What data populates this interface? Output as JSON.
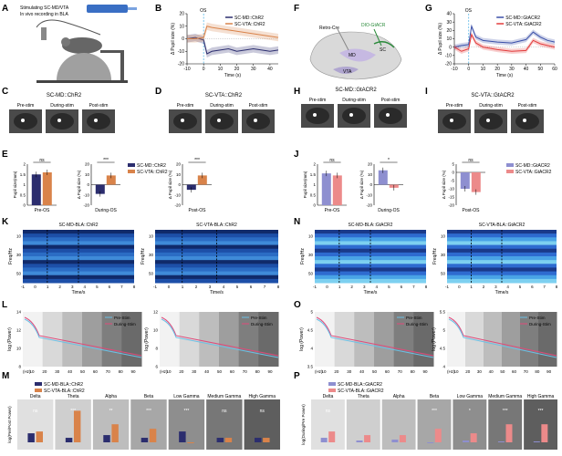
{
  "panels": {
    "A": "A",
    "B": "B",
    "C": "C",
    "D": "D",
    "E": "E",
    "F": "F",
    "G": "G",
    "H": "H",
    "I": "I",
    "J": "J",
    "K": "K",
    "L": "L",
    "M": "M",
    "N": "N",
    "O": "O",
    "P": "P"
  },
  "colors": {
    "navy": "#2b2d6e",
    "orange": "#d9834a",
    "lavender": "#8e8fd0",
    "salmon": "#ec8a8a",
    "red": "#e23b3b",
    "blue": "#3a4fa8",
    "cyan": "#6bc0e6",
    "pink": "#e04a7a"
  },
  "schematicA": {
    "line1": "Stimulating SC-MD/VTA",
    "line2": "In vivo recording in BLA"
  },
  "schematicF": {
    "retro": "Retro-Cre",
    "dio": "DIO-GtACR",
    "sc": "SC",
    "md": "MD",
    "vta": "VTA"
  },
  "titles": {
    "C": "SC-MD::ChR2",
    "D": "SC-VTA::ChR2",
    "H": "SC-MD::GtACR2",
    "I": "SC-VTA::GtACR2",
    "K1": "SC-MD-BLA::ChR2",
    "K2": "SC-VTA-BLA::ChR2",
    "N1": "SC-MD-BLA::GtACR2",
    "N2": "SC-VTA-BLA::GtACR2"
  },
  "eyeLabels": [
    "Pre-stim",
    "During-stim",
    "Post-stim"
  ],
  "eyeLabelsLower": [
    "Pre-stim",
    "During-stim",
    "Post-stim"
  ],
  "legends": {
    "chr": [
      "SC-MD::ChR2",
      "SC-VTA::ChR2"
    ],
    "gt": [
      "SC-MD::GtACR2",
      "SC-VTA::GtACR2"
    ],
    "prepost": [
      "Pre-Stim",
      "During-Stim"
    ],
    "bandChr": [
      "SC-MD-BLA::ChR2",
      "SC-VTA-BLA::ChR2"
    ],
    "bandGt": [
      "SC-MD-BLA::GtACR2",
      "SC-VTA-BLA::GtACR2"
    ]
  },
  "axes": {
    "pupilSizeMm": "Pupil size(mm)",
    "deltaPupil": "Δ Pupil size (%)",
    "time": "Time (s)",
    "timeS": "Time/s",
    "freq": "Freq/Hz",
    "logPower": "log (Power)",
    "logRatio": "log(Pre/Post Power)",
    "logRatioP": "log(During/Pre Power)",
    "hz": "(Hz)",
    "os": "OS",
    "preOS": "Pre-OS",
    "duringOS": "During-OS",
    "postOS": "Post-OS"
  },
  "bands": [
    "Delta",
    "Theta",
    "Alpha",
    "Beta",
    "Low Gamma",
    "Medium Gamma",
    "High Gamma"
  ],
  "sigM": [
    "ns",
    "***",
    "**",
    "***",
    "***",
    "ns",
    "ns"
  ],
  "sigP": [
    "ns",
    "",
    "",
    "***",
    "*",
    "***",
    "***"
  ],
  "sigE": [
    "ns",
    "***",
    "***"
  ],
  "sigJ": [
    "ns",
    "*",
    "ns"
  ],
  "chart_data": [
    {
      "panel": "B",
      "type": "line",
      "xlabel": "Time (s)",
      "ylabel": "Δ Pupil size (%)",
      "xlim": [
        -10,
        45
      ],
      "ylim": [
        -20,
        20
      ],
      "xticks": [
        -10,
        0,
        10,
        20,
        30,
        40
      ],
      "yticks": [
        -20,
        -10,
        0,
        10,
        20
      ],
      "series": [
        {
          "name": "SC-MD::ChR2",
          "x": [
            -10,
            -5,
            0,
            2,
            5,
            10,
            15,
            20,
            25,
            30,
            35,
            40,
            45
          ],
          "y": [
            0,
            1,
            -1,
            -12,
            -10,
            -9,
            -8,
            -10,
            -9,
            -8,
            -9,
            -10,
            -9
          ]
        },
        {
          "name": "SC-VTA::ChR2",
          "x": [
            -10,
            -5,
            0,
            2,
            5,
            10,
            15,
            20,
            25,
            30,
            35,
            40,
            45
          ],
          "y": [
            0,
            0,
            1,
            10,
            9,
            8,
            7,
            6,
            5,
            4,
            3,
            2,
            1
          ]
        }
      ]
    },
    {
      "panel": "E1",
      "type": "bar",
      "ylabel": "Pupil size(mm)",
      "categories": [
        "Pre-OS"
      ],
      "ylim": [
        0,
        2
      ],
      "yticks": [
        0,
        0.5,
        1,
        1.5,
        2
      ],
      "series": [
        {
          "name": "SC-MD::ChR2",
          "values": [
            1.5
          ]
        },
        {
          "name": "SC-VTA::ChR2",
          "values": [
            1.6
          ]
        }
      ]
    },
    {
      "panel": "E2",
      "type": "bar",
      "ylabel": "Δ Pupil size (%)",
      "categories": [
        "During-OS"
      ],
      "ylim": [
        -20,
        20
      ],
      "yticks": [
        -20,
        -10,
        0,
        10,
        20
      ],
      "series": [
        {
          "name": "SC-MD::ChR2",
          "values": [
            -9
          ]
        },
        {
          "name": "SC-VTA::ChR2",
          "values": [
            9
          ]
        }
      ]
    },
    {
      "panel": "E3",
      "type": "bar",
      "ylabel": "Δ Pupil size (%)",
      "categories": [
        "Post-OS"
      ],
      "ylim": [
        -20,
        20
      ],
      "yticks": [
        -20,
        -10,
        0,
        10,
        20
      ],
      "series": [
        {
          "name": "SC-MD::ChR2",
          "values": [
            -5
          ]
        },
        {
          "name": "SC-VTA::ChR2",
          "values": [
            9
          ]
        }
      ]
    },
    {
      "panel": "G",
      "type": "line",
      "xlabel": "Time (s)",
      "ylabel": "Δ Pupil size (%)",
      "xlim": [
        -10,
        60
      ],
      "ylim": [
        -20,
        40
      ],
      "xticks": [
        -10,
        0,
        10,
        20,
        30,
        40,
        50,
        60
      ],
      "yticks": [
        -20,
        -10,
        0,
        10,
        20,
        30,
        40
      ],
      "series": [
        {
          "name": "SC-MD::GtACR2",
          "x": [
            -10,
            -5,
            0,
            2,
            5,
            10,
            20,
            30,
            40,
            45,
            50,
            55,
            60
          ],
          "y": [
            0,
            2,
            3,
            25,
            12,
            8,
            6,
            5,
            9,
            18,
            12,
            8,
            6
          ]
        },
        {
          "name": "SC-VTA::GtACR2",
          "x": [
            -10,
            -5,
            0,
            2,
            5,
            10,
            20,
            30,
            40,
            45,
            50,
            55,
            60
          ],
          "y": [
            0,
            -5,
            -2,
            15,
            5,
            0,
            -3,
            -5,
            -4,
            8,
            4,
            2,
            0
          ]
        }
      ]
    },
    {
      "panel": "J1",
      "type": "bar",
      "ylabel": "Pupil size(mm)",
      "categories": [
        "Pre-OS"
      ],
      "ylim": [
        0,
        2
      ],
      "yticks": [
        0,
        0.5,
        1,
        1.5,
        2
      ],
      "series": [
        {
          "name": "SC-MD::GtACR2",
          "values": [
            1.55
          ]
        },
        {
          "name": "SC-VTA::GtACR2",
          "values": [
            1.45
          ]
        }
      ]
    },
    {
      "panel": "J2",
      "type": "bar",
      "ylabel": "Δ Pupil size (%)",
      "categories": [
        "During-OS"
      ],
      "ylim": [
        -20,
        20
      ],
      "yticks": [
        -20,
        -10,
        0,
        10,
        20
      ],
      "series": [
        {
          "name": "SC-MD::GtACR2",
          "values": [
            14
          ]
        },
        {
          "name": "SC-VTA::GtACR2",
          "values": [
            -3
          ]
        }
      ]
    },
    {
      "panel": "J3",
      "type": "bar",
      "ylabel": "Δ Pupil size (%)",
      "categories": [
        "Post-OS"
      ],
      "ylim": [
        -20,
        5
      ],
      "yticks": [
        -20,
        -15,
        -10,
        -5,
        0,
        5
      ],
      "series": [
        {
          "name": "SC-MD::GtACR2",
          "values": [
            -10
          ]
        },
        {
          "name": "SC-VTA::GtACR2",
          "values": [
            -12
          ]
        }
      ]
    },
    {
      "panel": "M",
      "type": "bar",
      "ylabel": "log(Pre/Post Power)",
      "categories": [
        "Delta",
        "Theta",
        "Alpha",
        "Beta",
        "Low Gamma",
        "Medium Gamma",
        "High Gamma"
      ],
      "series": [
        {
          "name": "SC-MD-BLA::ChR2",
          "values": [
            0.1,
            0.05,
            0.08,
            0.05,
            0.12,
            0.05,
            0.05
          ]
        },
        {
          "name": "SC-VTA-BLA::ChR2",
          "values": [
            0.12,
            0.35,
            0.2,
            0.15,
            0.0,
            0.05,
            0.05
          ]
        }
      ]
    },
    {
      "panel": "P",
      "type": "bar",
      "ylabel": "log(During/Pre Power)",
      "categories": [
        "Delta",
        "Theta",
        "Alpha",
        "Beta",
        "Low Gamma",
        "Medium Gamma",
        "High Gamma"
      ],
      "series": [
        {
          "name": "SC-MD-BLA::GtACR2",
          "values": [
            0.05,
            0.02,
            0.03,
            0.0,
            0.02,
            0.01,
            0.01
          ]
        },
        {
          "name": "SC-VTA-BLA::GtACR2",
          "values": [
            0.12,
            0.08,
            0.08,
            0.15,
            0.1,
            0.2,
            0.2
          ]
        }
      ]
    }
  ]
}
